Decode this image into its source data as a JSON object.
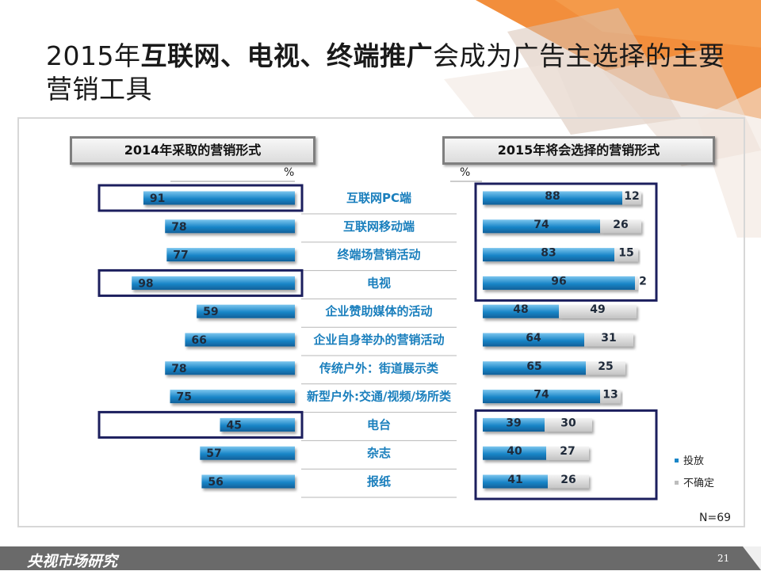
{
  "slide": {
    "title_parts": [
      {
        "text": "2015年",
        "bold": false
      },
      {
        "text": "互联网、电视、终端推广",
        "bold": true
      },
      {
        "text": "会成为广告主选择的主要营销工具",
        "bold": false
      }
    ],
    "left_header": "2014年采取的营销形式",
    "right_header": "2015年将会选择的营销形式",
    "left_unit": "%",
    "right_unit": "%",
    "sample_size": "N=69",
    "footer_brand": "央视市场研究",
    "page_number": "21"
  },
  "colors": {
    "blue_bar": "#1a86c8",
    "gray_bar": "#d9d9d9",
    "label_blue": "#1a7fbd",
    "highlight_box": "#1c1f5e",
    "accent_orange": "#f07a1a",
    "footer_gray": "#6a6a6a"
  },
  "chart_data": [
    {
      "type": "bar",
      "orientation": "horizontal",
      "title": "2014年采取的营销形式",
      "unit": "%",
      "categories": [
        "互联网PC端",
        "互联网移动端",
        "终端场营销活动",
        "电视",
        "企业赞助媒体的活动",
        "企业自身举办的营销活动",
        "传统户外：街道展示类",
        "新型户外:交通/视频/场所类",
        "电台",
        "杂志",
        "报纸"
      ],
      "values": [
        91,
        78,
        77,
        98,
        59,
        66,
        78,
        75,
        45,
        57,
        56
      ],
      "highlighted": [
        "互联网PC端",
        "电视",
        "电台"
      ]
    },
    {
      "type": "bar",
      "orientation": "horizontal",
      "stacked": true,
      "title": "2015年将会选择的营销形式",
      "unit": "%",
      "categories": [
        "互联网PC端",
        "互联网移动端",
        "终端场营销活动",
        "电视",
        "企业赞助媒体的活动",
        "企业自身举办的营销活动",
        "传统户外：街道展示类",
        "新型户外:交通/视频/场所类",
        "电台",
        "杂志",
        "报纸"
      ],
      "series": [
        {
          "name": "投放",
          "values": [
            88,
            74,
            83,
            96,
            48,
            64,
            65,
            74,
            39,
            40,
            41
          ]
        },
        {
          "name": "不确定",
          "values": [
            12,
            26,
            15,
            2,
            49,
            31,
            25,
            13,
            30,
            27,
            26
          ]
        }
      ],
      "legend": "right",
      "highlighted_groups": [
        [
          "互联网PC端",
          "互联网移动端",
          "终端场营销活动",
          "电视"
        ],
        [
          "电台",
          "杂志",
          "报纸"
        ]
      ]
    }
  ]
}
